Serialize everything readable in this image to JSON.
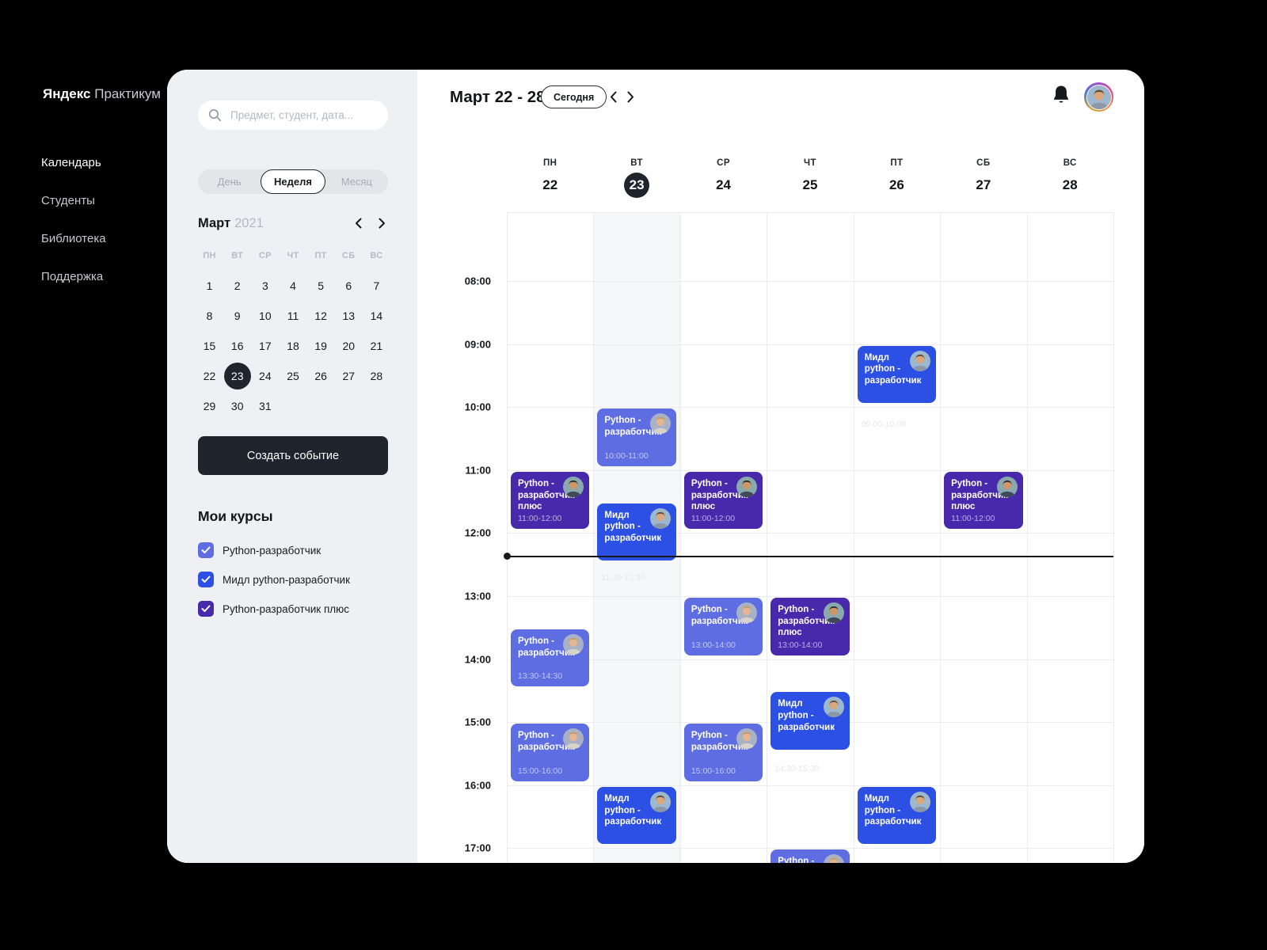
{
  "app": {
    "logo_bold": "Яндекс",
    "logo_light": "Практикум"
  },
  "nav": {
    "items": [
      {
        "label": "Календарь",
        "active": true
      },
      {
        "label": "Студенты",
        "active": false
      },
      {
        "label": "Библиотека",
        "active": false
      },
      {
        "label": "Поддержка",
        "active": false
      }
    ]
  },
  "sidebar": {
    "search_placeholder": "Предмет, студент, дата...",
    "view_toggle": {
      "options": [
        "День",
        "Неделя",
        "Месяц"
      ],
      "selected": "Неделя"
    },
    "mini_calendar": {
      "month": "Март",
      "year": "2021",
      "weekdays": [
        "ПН",
        "ВТ",
        "СР",
        "ЧТ",
        "ПТ",
        "СБ",
        "ВС"
      ],
      "weeks": [
        [
          1,
          2,
          3,
          4,
          5,
          6,
          7
        ],
        [
          8,
          9,
          10,
          11,
          12,
          13,
          14
        ],
        [
          15,
          16,
          17,
          18,
          19,
          20,
          21
        ],
        [
          22,
          23,
          24,
          25,
          26,
          27,
          28
        ],
        [
          29,
          30,
          31
        ]
      ],
      "selected_day": 23
    },
    "create_button": "Создать событие",
    "courses": {
      "title": "Мои курсы",
      "items": [
        {
          "label": "Python-разработчик",
          "color": "#5e6de2"
        },
        {
          "label": "Мидл python-разработчик",
          "color": "#2c4fe4"
        },
        {
          "label": "Python-разработчик плюс",
          "color": "#4829ab"
        }
      ]
    }
  },
  "header": {
    "title": "Март 22 - 28",
    "today_button": "Сегодня"
  },
  "week": {
    "days": [
      {
        "weekday": "ПН",
        "date": "22",
        "today": false
      },
      {
        "weekday": "ВТ",
        "date": "23",
        "today": true
      },
      {
        "weekday": "СР",
        "date": "24",
        "today": false
      },
      {
        "weekday": "ЧТ",
        "date": "25",
        "today": false
      },
      {
        "weekday": "ПТ",
        "date": "26",
        "today": false
      },
      {
        "weekday": "СБ",
        "date": "27",
        "today": false
      },
      {
        "weekday": "ВС",
        "date": "28",
        "today": false
      }
    ]
  },
  "timeline": {
    "hours": [
      "08:00",
      "09:00",
      "10:00",
      "11:00",
      "12:00",
      "13:00",
      "14:00",
      "15:00",
      "16:00",
      "17:00"
    ],
    "current_time": "12:22",
    "current_day": "ВТ"
  },
  "events": [
    {
      "day": 4,
      "start": "09:00",
      "end": "10:00",
      "course": "midl",
      "title": "Мидл python - разработчик",
      "time_label": "",
      "avatar": "man1"
    },
    {
      "day": 1,
      "start": "10:00",
      "end": "11:00",
      "course": "python",
      "title": "Python - разработчик",
      "time_label": "10:00-11:00",
      "avatar": "woman"
    },
    {
      "day": 0,
      "start": "11:00",
      "end": "12:00",
      "course": "plus",
      "title": "Python - разработчик плюс",
      "time_label": "11:00-12:00",
      "avatar": "man2"
    },
    {
      "day": 1,
      "start": "11:30",
      "end": "12:30",
      "course": "midl",
      "title": "Мидл python - разработчик",
      "time_label": "",
      "avatar": "man1"
    },
    {
      "day": 2,
      "start": "11:00",
      "end": "12:00",
      "course": "plus",
      "title": "Python - разработчик плюс",
      "time_label": "11:00-12:00",
      "avatar": "man2"
    },
    {
      "day": 5,
      "start": "11:00",
      "end": "12:00",
      "course": "plus",
      "title": "Python - разработчик плюс",
      "time_label": "11:00-12:00",
      "avatar": "man2"
    },
    {
      "day": 2,
      "start": "13:00",
      "end": "14:00",
      "course": "python",
      "title": "Python - разработчик",
      "time_label": "13:00-14:00",
      "avatar": "woman"
    },
    {
      "day": 3,
      "start": "13:00",
      "end": "14:00",
      "course": "plus",
      "title": "Python - разработчик плюс",
      "time_label": "13:00-14:00",
      "avatar": "man2"
    },
    {
      "day": 0,
      "start": "13:30",
      "end": "14:30",
      "course": "python",
      "title": "Python - разработчик",
      "time_label": "13:30-14:30",
      "avatar": "woman"
    },
    {
      "day": 3,
      "start": "14:30",
      "end": "15:30",
      "course": "midl",
      "title": "Мидл python - разработчик",
      "time_label": "",
      "avatar": "man1"
    },
    {
      "day": 0,
      "start": "15:00",
      "end": "16:00",
      "course": "python",
      "title": "Python - разработчик",
      "time_label": "15:00-16:00",
      "avatar": "woman"
    },
    {
      "day": 2,
      "start": "15:00",
      "end": "16:00",
      "course": "python",
      "title": "Python - разработчик",
      "time_label": "15:00-16:00",
      "avatar": "woman"
    },
    {
      "day": 1,
      "start": "16:00",
      "end": "17:00",
      "course": "midl",
      "title": "Мидл python - разработчик",
      "time_label": "",
      "avatar": "man1"
    },
    {
      "day": 4,
      "start": "16:00",
      "end": "17:00",
      "course": "midl",
      "title": "Мидл python - разработчик",
      "time_label": "",
      "avatar": "man1"
    },
    {
      "day": 3,
      "start": "17:00",
      "end": "18:00",
      "course": "python",
      "title": "Python - разработчик",
      "time_label": "",
      "avatar": "woman"
    }
  ],
  "ghost_times": [
    {
      "day": 4,
      "at": "10:12",
      "label": "09:00-10:00"
    },
    {
      "day": 1,
      "at": "12:38",
      "label": "11:30-12:30"
    },
    {
      "day": 3,
      "at": "15:40",
      "label": "14:30-15:30"
    }
  ],
  "colors": {
    "course_python": "#5e6de2",
    "course_midl": "#2c4fe4",
    "course_plus": "#4829ab",
    "selected_day_bg": "#20242c",
    "today_column_tint": "#f6f7f9"
  }
}
